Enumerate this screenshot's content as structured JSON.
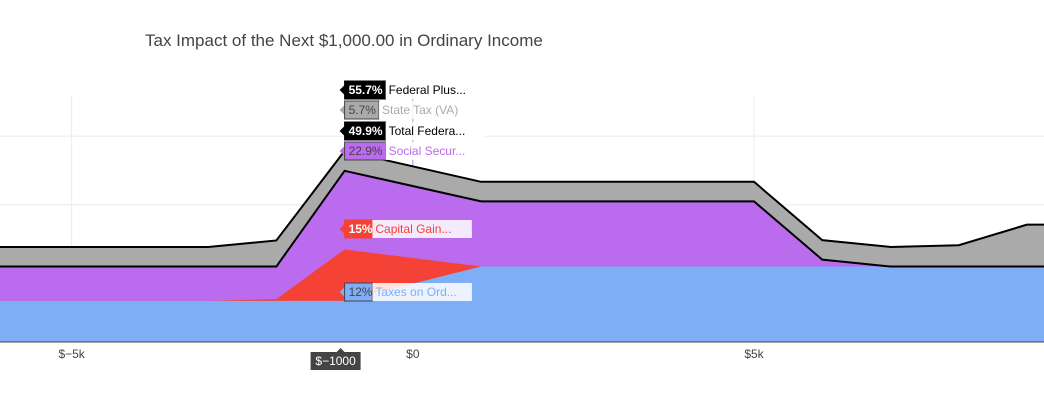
{
  "chart_data": {
    "type": "area",
    "title": "Tax Impact of the Next $1,000.00 in Ordinary Income",
    "xlabel": "",
    "ylabel": "",
    "xlim": [
      -6050,
      9250
    ],
    "ylim": [
      0,
      72
    ],
    "x_ticks": [
      -5000,
      0,
      5000
    ],
    "x_tick_labels": [
      "$−5k",
      "$0",
      "$5k"
    ],
    "y_grid": [
      0,
      20,
      40,
      60
    ],
    "grid": true,
    "hover_x": -1000,
    "hover_x_label": "$−1000",
    "x": [
      -6050,
      -3000,
      -2000,
      -1000,
      1000,
      5000,
      6000,
      7000,
      8000,
      9000,
      9250
    ],
    "series": [
      {
        "name": "Taxes on Ordinary Income",
        "label": "Taxes on Ord...",
        "hover_value": "12%",
        "line_only": false,
        "color": "#7eaef6",
        "values": [
          12,
          12,
          12,
          12,
          22,
          22,
          22,
          22,
          22,
          22,
          22
        ]
      },
      {
        "name": "Capital Gains",
        "label": "Capital Gain...",
        "hover_value": "15%",
        "line_only": false,
        "color": "#f44336",
        "values": [
          12,
          12,
          12.5,
          27,
          22,
          22,
          22,
          22,
          22,
          22,
          22
        ]
      },
      {
        "name": "Social Security",
        "label": "Social Secur...",
        "hover_value": "22.9%",
        "line_only": false,
        "color": "#bb6bee",
        "values": [
          22,
          22,
          22,
          49.9,
          41,
          41,
          24,
          22,
          22,
          22,
          22
        ]
      },
      {
        "name": "Total Federal",
        "label": "Total Federa...",
        "hover_value": "49.9%",
        "line_only": true,
        "color": "#000000",
        "values": [
          22,
          22,
          22,
          49.9,
          41,
          41,
          24,
          22,
          22,
          22,
          22
        ]
      },
      {
        "name": "State Tax (VA)",
        "label": "State Tax (VA)",
        "hover_value": "5.7%",
        "line_only": false,
        "color": "#aaaaaa",
        "values": [
          27.7,
          27.7,
          29.6,
          55.7,
          46.7,
          46.7,
          29.7,
          27.7,
          28.2,
          34.2,
          34.2
        ]
      },
      {
        "name": "Federal Plus State",
        "label": "Federal Plus...",
        "hover_value": "55.7%",
        "line_only": true,
        "color": "#000000",
        "values": [
          27.7,
          27.7,
          29.6,
          55.7,
          46.7,
          46.7,
          29.7,
          27.7,
          28.2,
          34.2,
          34.2
        ]
      }
    ]
  }
}
